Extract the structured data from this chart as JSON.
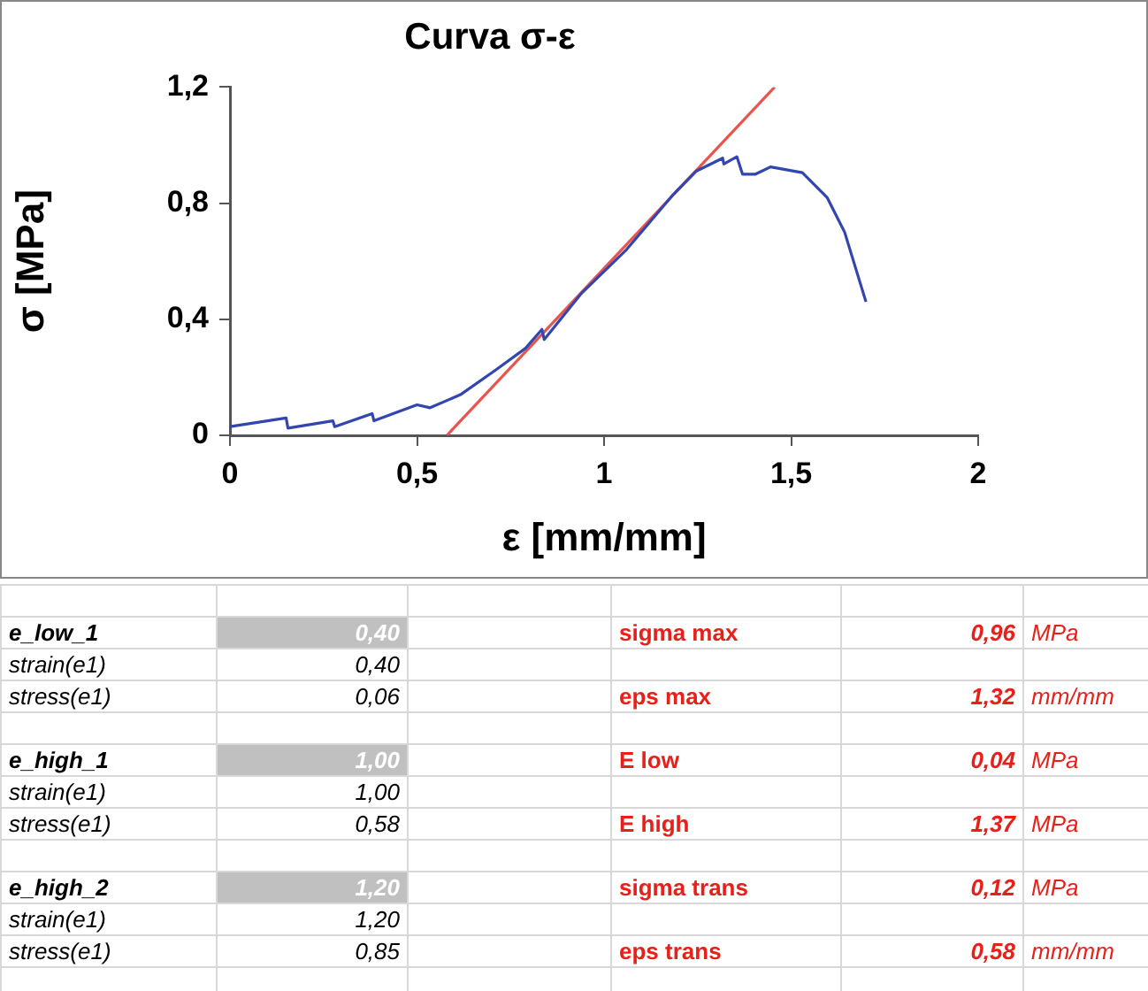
{
  "chart_data": {
    "type": "line",
    "title": "Curva σ-ε",
    "xlabel": "ε [mm/mm]",
    "ylabel": "σ [MPa]",
    "xlim": [
      0,
      2
    ],
    "xticks": [
      0,
      {
        "value": 0.5,
        "label": "0,5"
      },
      1,
      {
        "value": 1.5,
        "label": "1,5"
      },
      2
    ],
    "ylim": [
      0,
      1.2
    ],
    "yticks": [
      0,
      {
        "value": 0.4,
        "label": "0,4"
      },
      {
        "value": 0.8,
        "label": "0,8"
      },
      {
        "value": 1.2,
        "label": "1,2"
      }
    ],
    "grid": false,
    "legend": false,
    "marker": "none",
    "line_style": "solid",
    "series": [
      {
        "color": "#3346b0",
        "x": [
          0,
          0.15,
          0.155,
          0.275,
          0.28,
          0.38,
          0.385,
          0.5,
          0.535,
          0.616,
          0.71,
          0.79,
          0.834,
          0.84,
          0.94,
          1.06,
          1.185,
          1.246,
          1.317,
          1.32,
          1.355,
          1.37,
          1.405,
          1.445,
          1.53,
          1.596,
          1.643,
          1.7
        ],
        "values": [
          0.03,
          0.06,
          0.025,
          0.05,
          0.03,
          0.075,
          0.05,
          0.105,
          0.095,
          0.14,
          0.225,
          0.3,
          0.365,
          0.33,
          0.49,
          0.64,
          0.83,
          0.91,
          0.955,
          0.935,
          0.96,
          0.9,
          0.9,
          0.925,
          0.905,
          0.82,
          0.7,
          0.46
        ]
      },
      {
        "color": "#e8554e",
        "x": [
          0.58,
          1.456
        ],
        "values": [
          0,
          1.2
        ]
      }
    ],
    "annotations": [
      "e_low_1",
      "0,40",
      "sigma max",
      "0,96",
      "MPa",
      "strain(e1)",
      "0,40",
      "stress(e1)",
      "0,06",
      "eps max",
      "1,32",
      "mm/mm",
      "e_high_1",
      "1,00",
      "E low",
      "0,04",
      "MPa",
      "strain(e1)",
      "1,00",
      "stress(e1)",
      "0,58",
      "E high",
      "1,37",
      "MPa",
      "e_high_2",
      "1,20",
      "sigma trans",
      "0,12",
      "MPa",
      "strain(e1)",
      "1,20",
      "stress(e1)",
      "0,85",
      "eps trans",
      "0,58",
      "mm/mm"
    ]
  }
}
